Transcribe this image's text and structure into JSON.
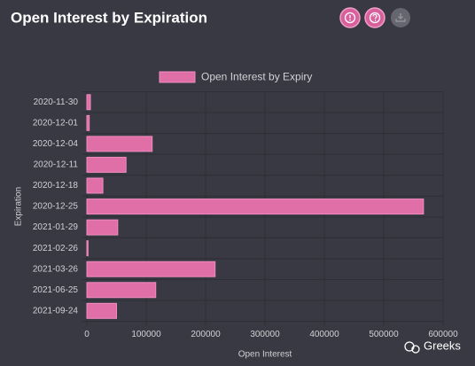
{
  "title": "Open Interest by Expiration",
  "watermark": "Greeks",
  "chart_data": {
    "type": "bar",
    "orientation": "horizontal",
    "categories": [
      "2020-11-30",
      "2020-12-01",
      "2020-12-04",
      "2020-12-11",
      "2020-12-18",
      "2020-12-25",
      "2021-01-29",
      "2021-02-26",
      "2021-03-26",
      "2021-06-25",
      "2021-09-24"
    ],
    "series": [
      {
        "name": "Open Interest by Expiry",
        "color": "#e06fa8",
        "values": [
          6000,
          4000,
          110000,
          66000,
          27000,
          567000,
          52000,
          2000,
          216000,
          116000,
          50000
        ]
      }
    ],
    "xlabel": "Open Interest",
    "ylabel": "Expiration",
    "xlim": [
      0,
      600000
    ],
    "xticks": [
      0,
      100000,
      200000,
      300000,
      400000,
      500000,
      600000
    ],
    "grid": true,
    "legend": "top"
  }
}
